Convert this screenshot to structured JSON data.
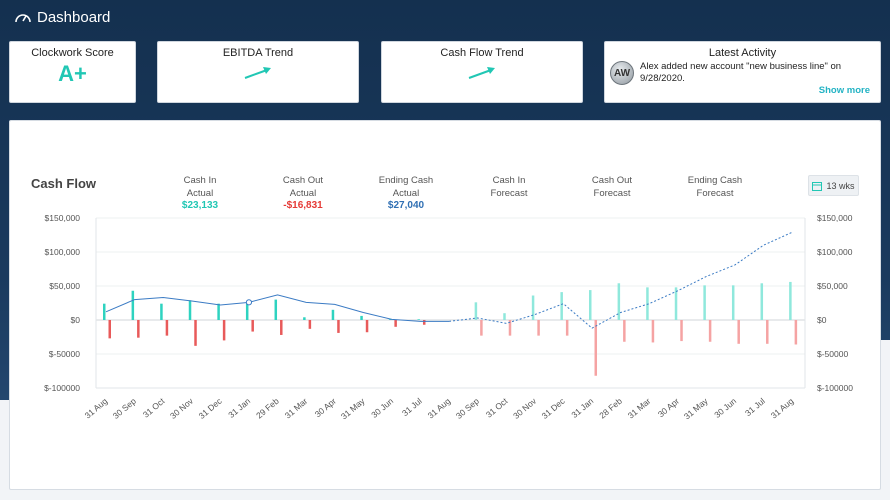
{
  "header": {
    "title": "Dashboard",
    "icon": "gauge-icon"
  },
  "cards": {
    "clockwork": {
      "title": "Clockwork Score",
      "value": "A+"
    },
    "ebitda": {
      "title": "EBITDA Trend",
      "icon": "trend-up-icon"
    },
    "cashflow_trend": {
      "title": "Cash Flow Trend",
      "icon": "trend-up-icon"
    },
    "activity": {
      "title": "Latest Activity",
      "avatar": "AW",
      "text": "Alex added new account \"new business line\" on 9/28/2020.",
      "show_more": "Show more"
    }
  },
  "cash_flow": {
    "title": "Cash Flow",
    "metrics": [
      {
        "line1": "Cash In",
        "line2": "Actual",
        "value": "$23,133",
        "color": "#21c7b4"
      },
      {
        "line1": "Cash Out",
        "line2": "Actual",
        "value": "-$16,831",
        "color": "#e53935"
      },
      {
        "line1": "Ending Cash",
        "line2": "Actual",
        "value": "$27,040",
        "color": "#2f6fb3"
      },
      {
        "line1": "Cash In",
        "line2": "Forecast",
        "value": "",
        "color": "#555"
      },
      {
        "line1": "Cash Out",
        "line2": "Forecast",
        "value": "",
        "color": "#555"
      },
      {
        "line1": "Ending Cash",
        "line2": "Forecast",
        "value": "",
        "color": "#555"
      }
    ],
    "weeks_button": "13 wks"
  },
  "chart_data": {
    "type": "bar",
    "categories": [
      "31 Aug",
      "30 Sep",
      "31 Oct",
      "30 Nov",
      "31 Dec",
      "31 Jan",
      "29 Feb",
      "31 Mar",
      "30 Apr",
      "31 May",
      "30 Jun",
      "31 Jul",
      "31 Aug",
      "30 Sep",
      "31 Oct",
      "30 Nov",
      "31 Dec",
      "31 Jan",
      "28 Feb",
      "31 Mar",
      "30 Apr",
      "31 May",
      "30 Jun",
      "31 Jul",
      "31 Aug"
    ],
    "yticks": [
      "$150,000",
      "$100,000",
      "$50,000",
      "$0",
      "$-50000",
      "$-100000"
    ],
    "ylim": [
      -100000,
      150000
    ],
    "actual_count": 12,
    "series": [
      {
        "type": "bar",
        "values": [
          24000,
          43000,
          24000,
          29000,
          24000,
          24000,
          30000,
          4000,
          15000,
          6000,
          1000,
          1000,
          0,
          26000,
          10000,
          36000,
          41000,
          44000,
          54000,
          48000,
          48000,
          51000,
          51000,
          54000,
          56000
        ]
      },
      {
        "type": "bar",
        "values": [
          -27000,
          -26000,
          -23000,
          -38000,
          -30000,
          -17000,
          -22000,
          -13000,
          -19000,
          -18000,
          -10000,
          -7000,
          0,
          -23000,
          -23000,
          -23000,
          -23000,
          -82000,
          -32000,
          -33000,
          -31000,
          -32000,
          -35000,
          -35000,
          -36000
        ]
      },
      {
        "type": "line",
        "values": [
          12000,
          30000,
          33000,
          28000,
          22000,
          26000,
          37000,
          26000,
          23000,
          11000,
          1000,
          -2000,
          -2000,
          3000,
          -5000,
          8000,
          24000,
          -12000,
          11000,
          24000,
          43000,
          64000,
          81000,
          110000,
          129000
        ]
      }
    ],
    "colors": {
      "cash_in": "#2ed3c0",
      "cash_in_forecast": "#8fe8dc",
      "cash_out": "#e85a5a",
      "cash_out_forecast": "#f5a3a3",
      "ending": "#3b7bc4"
    }
  }
}
